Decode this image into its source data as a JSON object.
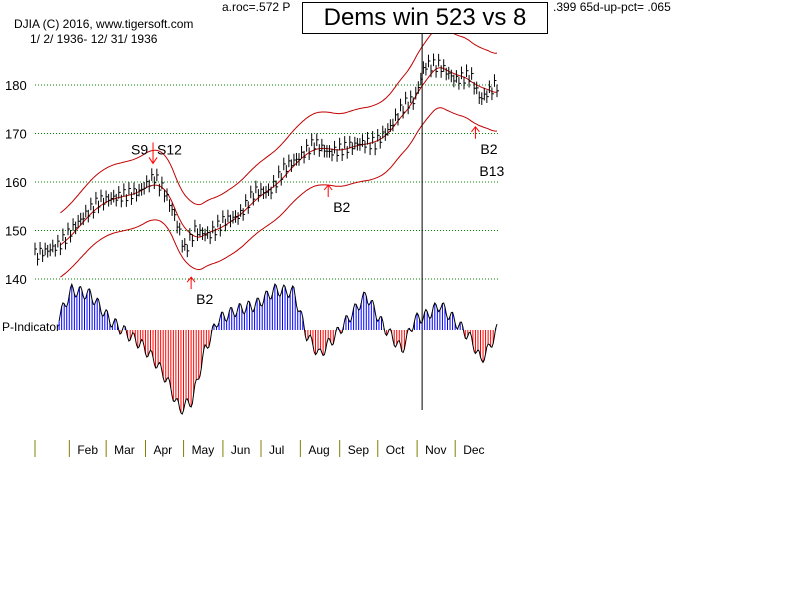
{
  "header": {
    "stats_left": "a.roc=.572 P",
    "stats_right": ".399 65d-up-pct= .065",
    "title": "Dems win 523 vs 8",
    "ticker": "DJIA   (C) 2016, www.tigersoft.com",
    "range": "1/ 2/ 1936- 12/ 31/ 1936"
  },
  "chart_data": {
    "type": "line",
    "title": "Dems win 523 vs 8",
    "ylim": [
      137,
      190
    ],
    "yticks": [
      140,
      150,
      160,
      170,
      180
    ],
    "xlim": [
      1,
      365
    ],
    "months": [
      {
        "label": "Feb",
        "day": 32
      },
      {
        "label": "Mar",
        "day": 61
      },
      {
        "label": "Apr",
        "day": 92
      },
      {
        "label": "May",
        "day": 122
      },
      {
        "label": "Jun",
        "day": 153
      },
      {
        "label": "Jul",
        "day": 183
      },
      {
        "label": "Aug",
        "day": 214
      },
      {
        "label": "Sep",
        "day": 245
      },
      {
        "label": "Oct",
        "day": 275
      },
      {
        "label": "Nov",
        "day": 306
      },
      {
        "label": "Dec",
        "day": 336
      }
    ],
    "price": {
      "day": [
        1,
        12,
        20,
        36,
        51,
        67,
        83,
        95,
        103,
        111,
        119,
        127,
        138,
        150,
        162,
        174,
        186,
        198,
        209,
        221,
        233,
        245,
        257,
        269,
        280,
        292,
        300,
        308,
        320,
        332,
        344,
        352,
        364
      ],
      "close": [
        145,
        146,
        147,
        152,
        156,
        157,
        158,
        161,
        158,
        153,
        146,
        150,
        149,
        152,
        153,
        158,
        158,
        163,
        165,
        168,
        166,
        167,
        168,
        168,
        171,
        176,
        177,
        184,
        184,
        181,
        182,
        177,
        180
      ]
    },
    "p_indicator": {
      "label": "P-Indicator",
      "day": [
        1,
        15,
        30,
        45,
        60,
        75,
        85,
        95,
        105,
        115,
        125,
        135,
        145,
        160,
        175,
        190,
        205,
        215,
        225,
        235,
        250,
        262,
        275,
        290,
        300,
        310,
        320,
        335,
        345,
        352,
        358,
        365
      ],
      "values": [
        0,
        0,
        40,
        35,
        10,
        -5,
        -15,
        -30,
        -50,
        -80,
        -70,
        -20,
        10,
        20,
        25,
        40,
        38,
        -5,
        -25,
        -10,
        15,
        35,
        5,
        -20,
        10,
        15,
        25,
        5,
        -10,
        -30,
        -20,
        0
      ]
    },
    "vertical_marker_day": 306,
    "signals": [
      {
        "label": "S9",
        "day": 94
      },
      {
        "label": "S12",
        "day": 94
      },
      {
        "label": "B2",
        "day": 124
      },
      {
        "label": "B2",
        "day": 232
      },
      {
        "label": "B2",
        "day": 348
      },
      {
        "label": "B13",
        "day": 348
      }
    ],
    "colors": {
      "price": "#000",
      "band": "#c00000",
      "grid": "#008000",
      "pos": "#0000ff",
      "neg": "#ff0000",
      "month_tick": "#808000"
    }
  }
}
